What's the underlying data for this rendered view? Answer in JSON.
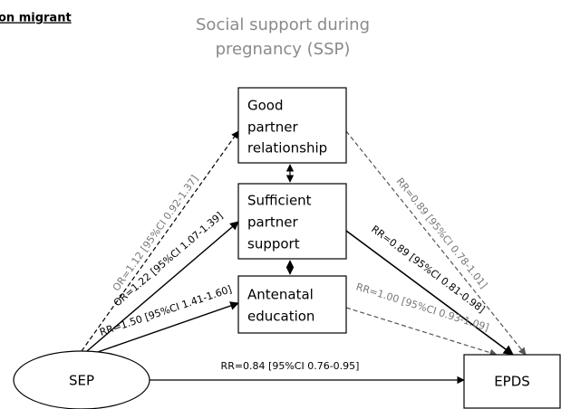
{
  "header": {
    "tag": "on migrant",
    "title_lines": [
      "Social support during",
      "pregnancy (SSP)"
    ]
  },
  "nodes": [
    {
      "label_lines": [
        "Good",
        "partner",
        "relationship"
      ]
    },
    {
      "label_lines": [
        "Sufficient",
        "partner",
        "support"
      ]
    },
    {
      "label_lines": [
        "Antenatal",
        "education"
      ]
    },
    {
      "label_lines": [
        "SEP"
      ]
    },
    {
      "label_lines": [
        "EPDS"
      ]
    }
  ],
  "edges": [
    {
      "label": "OR=1.12 [95%CI 0.92-1.37]"
    },
    {
      "label": "OR=1.22 [95%CI 1.07-1.39]"
    },
    {
      "label": "RR=1.50 [95%CI 1.41-1.60]"
    },
    {
      "label": "RR=0.89 [95%CI 0.78-1.01]"
    },
    {
      "label": "RR=0.89 [95%CI 0.81-0.98]"
    },
    {
      "label": "RR=1.00 [95%CI 0.93-1.09]"
    },
    {
      "label": "RR=0.84 [95%CI 0.76-0.95]"
    }
  ]
}
